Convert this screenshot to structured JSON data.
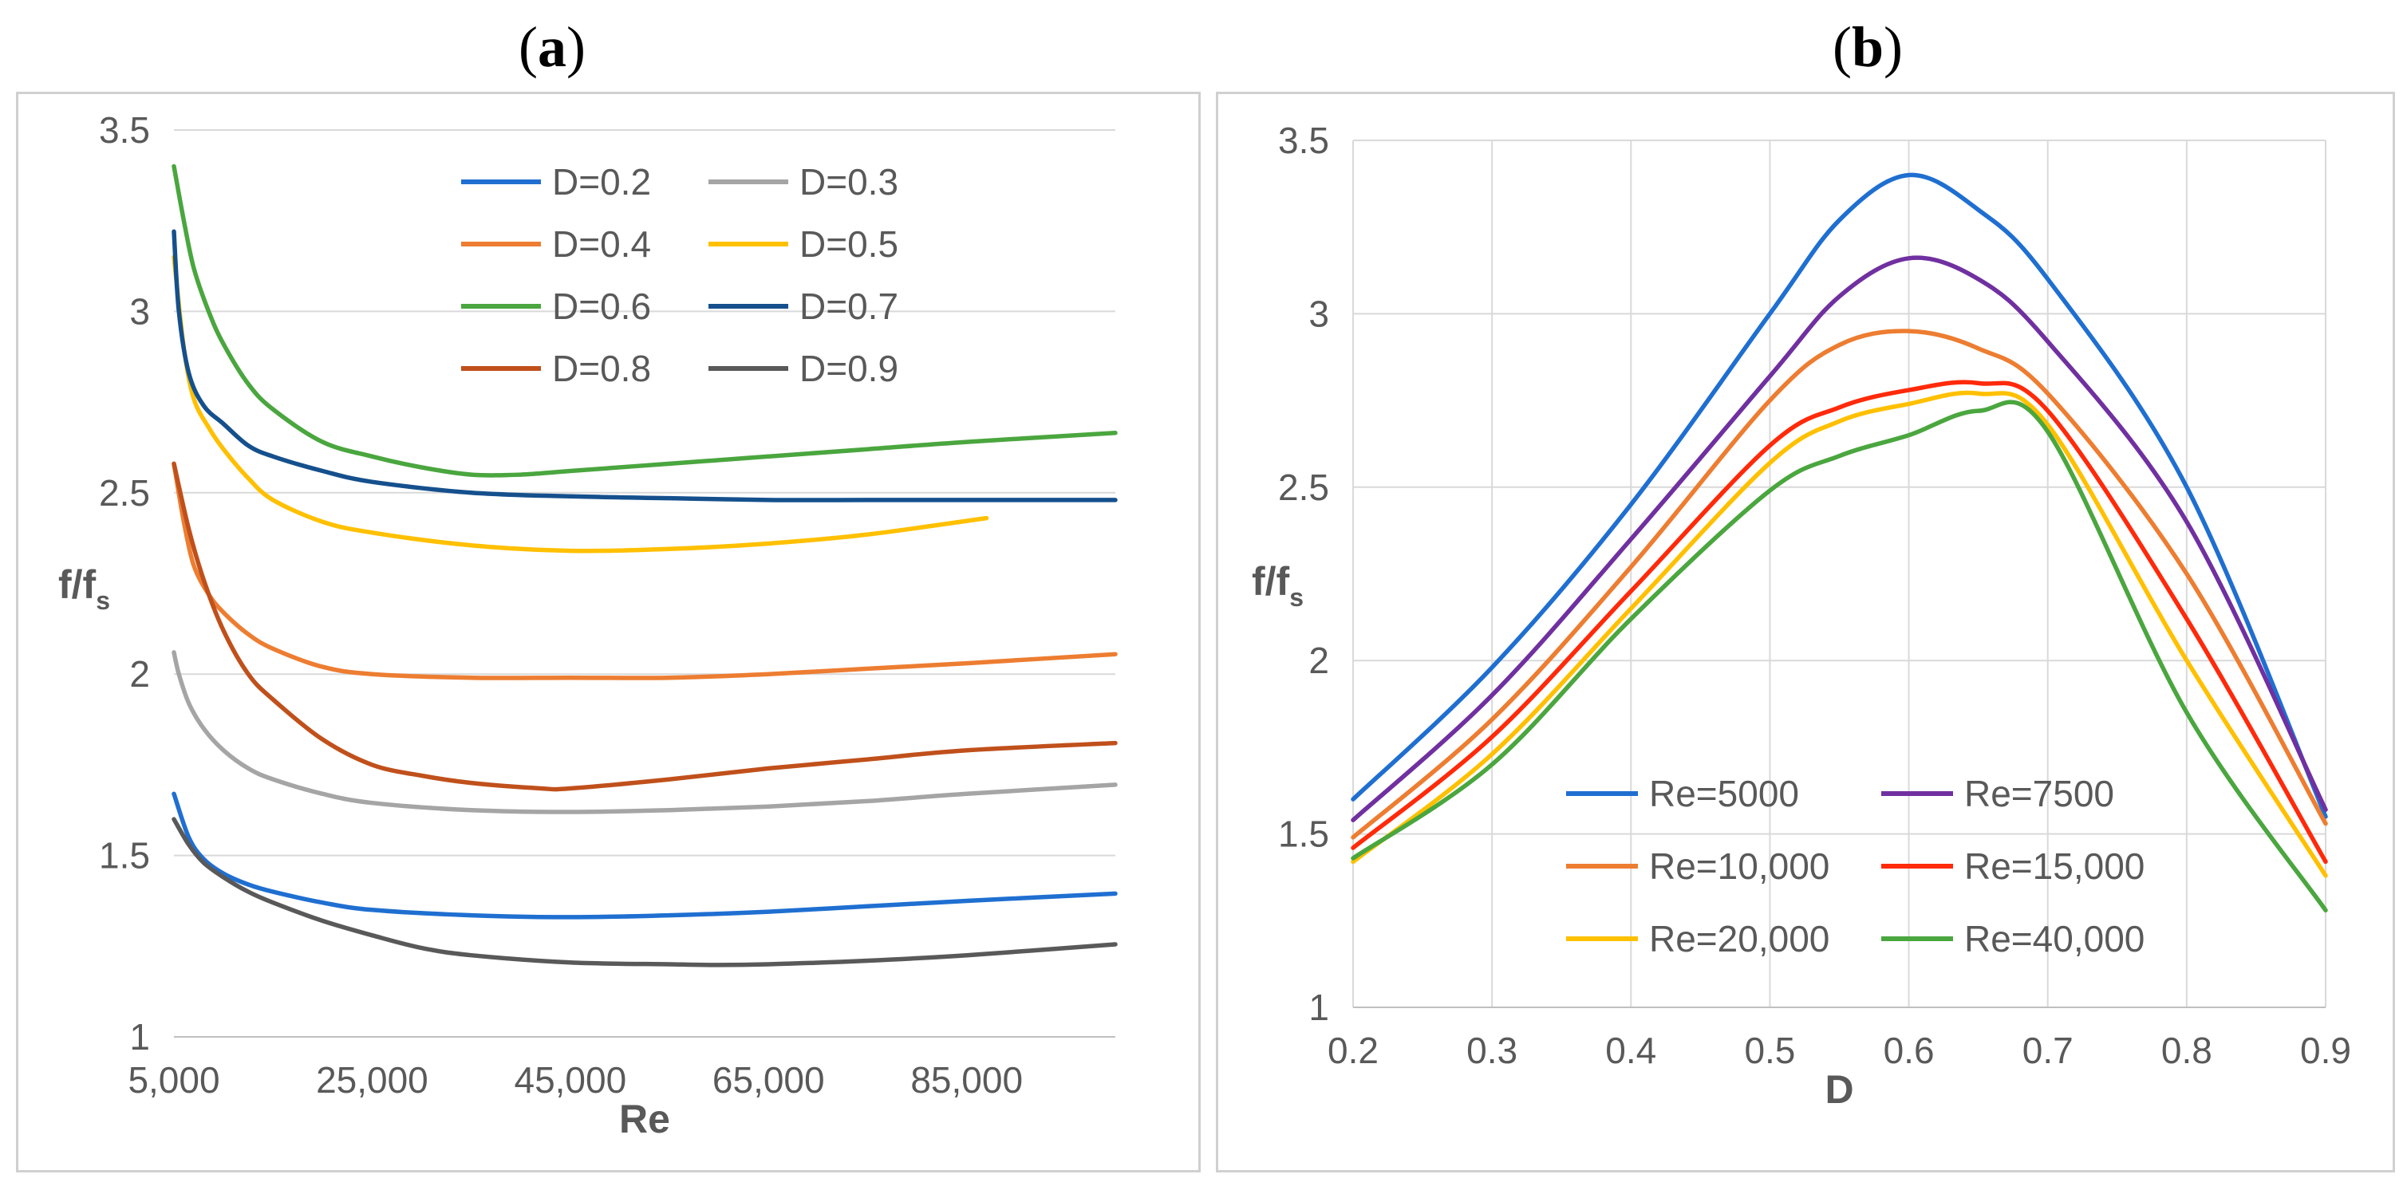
{
  "panels": {
    "a": {
      "label": "a"
    },
    "b": {
      "label": "b"
    }
  },
  "chart_data": [
    {
      "type": "line",
      "title": "(a)",
      "xlabel": "Re",
      "ylabel_main": "f/f",
      "ylabel_sub": "s",
      "xlim": [
        5000,
        100000
      ],
      "ylim": [
        1,
        3.5
      ],
      "xticks": [
        5000,
        25000,
        45000,
        65000,
        85000
      ],
      "xtick_labels": [
        "5,000",
        "25,000",
        "45,000",
        "65,000",
        "85,000"
      ],
      "yticks": [
        1,
        1.5,
        2,
        2.5,
        3,
        3.5
      ],
      "ytick_labels": [
        "1",
        "1.5",
        "2",
        "2.5",
        "3",
        "3.5"
      ],
      "grid": true,
      "legend_position": "top-center",
      "series": [
        {
          "name": "D=0.2",
          "color": "#1f6fd1",
          "x": [
            5000,
            6500,
            8000,
            10000,
            12500,
            15000,
            20000,
            25000,
            35000,
            45000,
            55000,
            65000,
            75000,
            85000,
            100000
          ],
          "y": [
            1.67,
            1.55,
            1.49,
            1.45,
            1.42,
            1.4,
            1.37,
            1.35,
            1.335,
            1.33,
            1.335,
            1.345,
            1.36,
            1.375,
            1.395
          ]
        },
        {
          "name": "D=0.3",
          "color": "#a5a5a5",
          "x": [
            5000,
            5500,
            6500,
            8000,
            10000,
            12500,
            15000,
            20000,
            25000,
            35000,
            45000,
            55000,
            65000,
            75000,
            85000,
            100000
          ],
          "y": [
            2.06,
            2.0,
            1.92,
            1.85,
            1.79,
            1.74,
            1.71,
            1.67,
            1.645,
            1.625,
            1.62,
            1.625,
            1.635,
            1.65,
            1.67,
            1.695
          ]
        },
        {
          "name": "D=0.4",
          "color": "#ed7d31",
          "x": [
            5000,
            6000,
            7000,
            8500,
            10000,
            12500,
            15000,
            20000,
            25000,
            35000,
            45000,
            55000,
            65000,
            75000,
            85000,
            100000
          ],
          "y": [
            2.58,
            2.42,
            2.3,
            2.22,
            2.17,
            2.11,
            2.07,
            2.02,
            2.0,
            1.99,
            1.99,
            1.99,
            2.0,
            2.015,
            2.03,
            2.055
          ]
        },
        {
          "name": "D=0.5",
          "color": "#ffc000",
          "x": [
            5000,
            6000,
            7000,
            8500,
            10000,
            12500,
            15000,
            20000,
            25000,
            35000,
            45000,
            55000,
            65000,
            75000,
            87000
          ],
          "y": [
            3.15,
            2.9,
            2.76,
            2.68,
            2.62,
            2.54,
            2.48,
            2.42,
            2.39,
            2.355,
            2.34,
            2.345,
            2.36,
            2.385,
            2.43
          ]
        },
        {
          "name": "D=0.6",
          "color": "#4aa63e",
          "x": [
            5000,
            6000,
            7000,
            8500,
            10000,
            12500,
            15000,
            20000,
            25000,
            30000,
            35000,
            40000,
            45000,
            55000,
            65000,
            75000,
            85000,
            100000
          ],
          "y": [
            3.4,
            3.25,
            3.12,
            3.0,
            2.91,
            2.8,
            2.73,
            2.64,
            2.6,
            2.57,
            2.55,
            2.55,
            2.56,
            2.58,
            2.6,
            2.62,
            2.64,
            2.665
          ]
        },
        {
          "name": "D=0.7",
          "color": "#15508d",
          "x": [
            5000,
            5500,
            6500,
            8000,
            10000,
            12500,
            15000,
            20000,
            25000,
            35000,
            45000,
            55000,
            65000,
            75000,
            85000,
            100000
          ],
          "y": [
            3.22,
            3.0,
            2.83,
            2.74,
            2.69,
            2.63,
            2.6,
            2.56,
            2.53,
            2.5,
            2.49,
            2.485,
            2.48,
            2.48,
            2.48,
            2.48
          ]
        },
        {
          "name": "D=0.8",
          "color": "#c0501b",
          "x": [
            5000,
            6500,
            8000,
            10000,
            12500,
            15000,
            20000,
            25000,
            30000,
            35000,
            42000,
            45000,
            55000,
            65000,
            75000,
            85000,
            100000
          ],
          "y": [
            2.58,
            2.4,
            2.26,
            2.12,
            2.0,
            1.93,
            1.82,
            1.75,
            1.72,
            1.7,
            1.685,
            1.685,
            1.71,
            1.74,
            1.765,
            1.79,
            1.81
          ]
        },
        {
          "name": "D=0.9",
          "color": "#595959",
          "x": [
            5000,
            6500,
            8000,
            10000,
            12500,
            15000,
            20000,
            25000,
            30000,
            35000,
            45000,
            55000,
            60000,
            65000,
            75000,
            85000,
            100000
          ],
          "y": [
            1.6,
            1.53,
            1.48,
            1.44,
            1.4,
            1.37,
            1.32,
            1.28,
            1.245,
            1.225,
            1.205,
            1.2,
            1.198,
            1.2,
            1.21,
            1.225,
            1.255
          ]
        }
      ]
    },
    {
      "type": "line",
      "title": "(b)",
      "xlabel": "D",
      "ylabel_main": "f/f",
      "ylabel_sub": "s",
      "xlim": [
        0.2,
        0.9
      ],
      "ylim": [
        1,
        3.5
      ],
      "xticks": [
        0.2,
        0.3,
        0.4,
        0.5,
        0.6,
        0.7,
        0.8,
        0.9
      ],
      "xtick_labels": [
        "0.2",
        "0.3",
        "0.4",
        "0.5",
        "0.6",
        "0.7",
        "0.8",
        "0.9"
      ],
      "yticks": [
        1,
        1.5,
        2,
        2.5,
        3,
        3.5
      ],
      "ytick_labels": [
        "1",
        "1.5",
        "2",
        "2.5",
        "3",
        "3.5"
      ],
      "grid": true,
      "legend_position": "bottom-center",
      "series": [
        {
          "name": "Re=5000",
          "color": "#1f6fd1",
          "x": [
            0.2,
            0.3,
            0.4,
            0.5,
            0.55,
            0.6,
            0.65,
            0.7,
            0.8,
            0.9
          ],
          "y": [
            1.6,
            1.98,
            2.45,
            3.0,
            3.27,
            3.4,
            3.3,
            3.1,
            2.5,
            1.55
          ]
        },
        {
          "name": "Re=7500",
          "color": "#7030a0",
          "x": [
            0.2,
            0.3,
            0.4,
            0.5,
            0.55,
            0.6,
            0.65,
            0.7,
            0.8,
            0.9
          ],
          "y": [
            1.54,
            1.9,
            2.35,
            2.82,
            3.05,
            3.16,
            3.1,
            2.92,
            2.4,
            1.57
          ]
        },
        {
          "name": "Re=10,000",
          "color": "#ed7d31",
          "x": [
            0.2,
            0.3,
            0.4,
            0.5,
            0.55,
            0.6,
            0.65,
            0.7,
            0.8,
            0.9
          ],
          "y": [
            1.49,
            1.83,
            2.27,
            2.75,
            2.91,
            2.95,
            2.9,
            2.77,
            2.25,
            1.53
          ]
        },
        {
          "name": "Re=15,000",
          "color": "#ff2a0a",
          "x": [
            0.2,
            0.3,
            0.4,
            0.5,
            0.55,
            0.6,
            0.65,
            0.7,
            0.8,
            0.9
          ],
          "y": [
            1.46,
            1.78,
            2.2,
            2.62,
            2.73,
            2.78,
            2.8,
            2.72,
            2.12,
            1.42
          ]
        },
        {
          "name": "Re=20,000",
          "color": "#ffc000",
          "x": [
            0.2,
            0.3,
            0.4,
            0.5,
            0.55,
            0.6,
            0.65,
            0.7,
            0.8,
            0.9
          ],
          "y": [
            1.42,
            1.73,
            2.15,
            2.57,
            2.69,
            2.74,
            2.77,
            2.68,
            2.0,
            1.38
          ]
        },
        {
          "name": "Re=40,000",
          "color": "#4aa63e",
          "x": [
            0.2,
            0.3,
            0.4,
            0.5,
            0.55,
            0.6,
            0.65,
            0.7,
            0.8,
            0.9
          ],
          "y": [
            1.43,
            1.7,
            2.12,
            2.49,
            2.59,
            2.65,
            2.72,
            2.66,
            1.85,
            1.28
          ]
        }
      ]
    }
  ]
}
